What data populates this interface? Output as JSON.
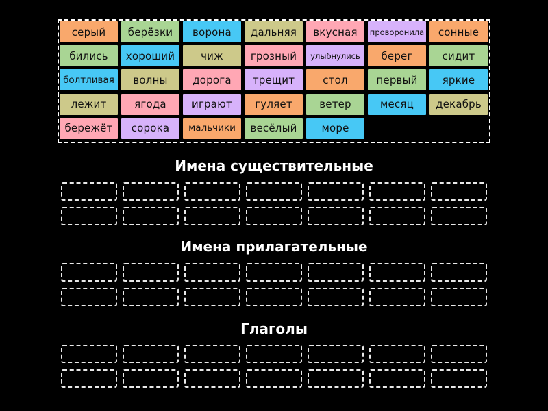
{
  "colors": {
    "orange": "#f9a86c",
    "green": "#a9d594",
    "cyan": "#47c8f5",
    "olive": "#cdc98a",
    "pink": "#ffa7b4",
    "lavender": "#d7b2fb",
    "background": "#000000",
    "slot_border": "#e8e8e8"
  },
  "tiles": [
    {
      "word": "серый",
      "color": "orange"
    },
    {
      "word": "берёзки",
      "color": "green"
    },
    {
      "word": "ворона",
      "color": "cyan"
    },
    {
      "word": "дальняя",
      "color": "olive"
    },
    {
      "word": "вкусная",
      "color": "pink"
    },
    {
      "word": "проворонила",
      "color": "lavender",
      "size": "small"
    },
    {
      "word": "сонные",
      "color": "orange"
    },
    {
      "word": "бились",
      "color": "green"
    },
    {
      "word": "хороший",
      "color": "cyan"
    },
    {
      "word": "чиж",
      "color": "olive"
    },
    {
      "word": "грозный",
      "color": "pink"
    },
    {
      "word": "улыбнулись",
      "color": "lavender",
      "size": "small"
    },
    {
      "word": "берег",
      "color": "orange"
    },
    {
      "word": "сидит",
      "color": "green"
    },
    {
      "word": "болтливая",
      "color": "cyan",
      "size": "tight"
    },
    {
      "word": "волны",
      "color": "olive"
    },
    {
      "word": "дорога",
      "color": "pink"
    },
    {
      "word": "трещит",
      "color": "lavender"
    },
    {
      "word": "стол",
      "color": "orange"
    },
    {
      "word": "первый",
      "color": "green"
    },
    {
      "word": "яркие",
      "color": "cyan"
    },
    {
      "word": "лежит",
      "color": "olive"
    },
    {
      "word": "ягода",
      "color": "pink"
    },
    {
      "word": "играют",
      "color": "lavender"
    },
    {
      "word": "гуляет",
      "color": "orange"
    },
    {
      "word": "ветер",
      "color": "green"
    },
    {
      "word": "месяц",
      "color": "cyan"
    },
    {
      "word": "декабрь",
      "color": "olive"
    },
    {
      "word": "бережёт",
      "color": "pink"
    },
    {
      "word": "сорока",
      "color": "lavender"
    },
    {
      "word": "мальчики",
      "color": "orange",
      "size": "tight"
    },
    {
      "word": "весёлый",
      "color": "green"
    },
    {
      "word": "море",
      "color": "cyan"
    }
  ],
  "groups": [
    {
      "title": "Имена существительные",
      "slots": 14
    },
    {
      "title": "Имена прилагательные",
      "slots": 14
    },
    {
      "title": "Глаголы",
      "slots": 14
    }
  ]
}
